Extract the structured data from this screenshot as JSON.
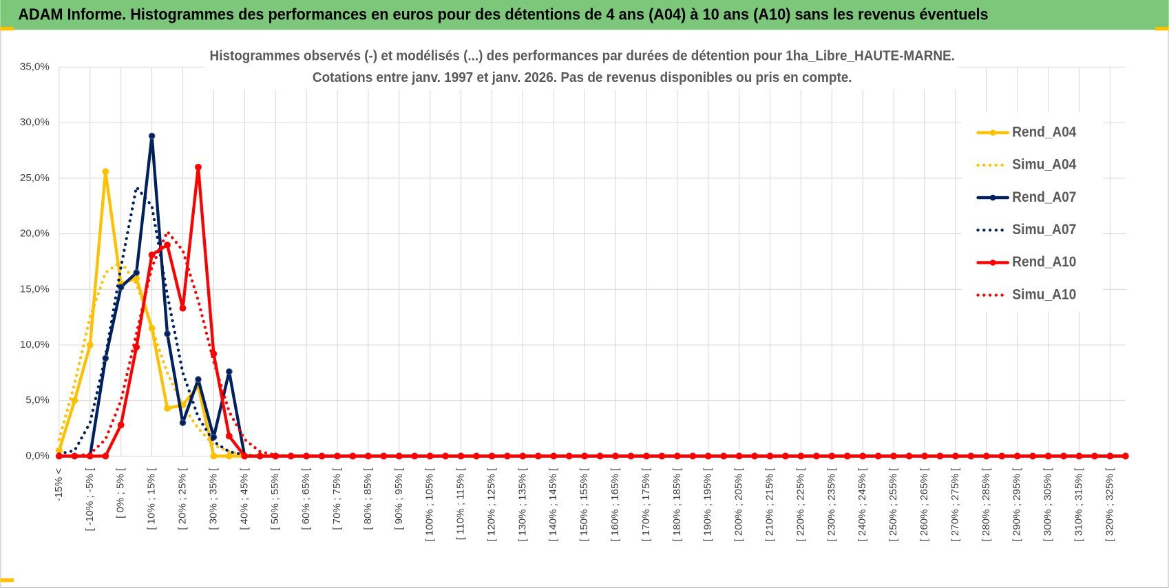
{
  "header": {
    "title": "ADAM Informe. Histogrammes des performances en euros pour des détentions de 4 ans (A04) à 10 ans (A10) sans les revenus éventuels"
  },
  "chart_data": {
    "type": "line",
    "title": "Histogrammes observés (-) et modélisés (...) des performances par durées de détention pour 1ha_Libre_HAUTE-MARNE.",
    "subtitle": "Cotations entre janv. 1997 et janv. 2026. Pas de revenus disponibles ou pris en compte.",
    "categories": [
      "-15% <",
      null,
      "[ -10% ; -5% [",
      null,
      "[ 0% ; 5% [",
      null,
      "[ 10% ; 15% [",
      null,
      "[ 20% ; 25% [",
      null,
      "[ 30% ; 35% [",
      null,
      "[ 40% ; 45% [",
      null,
      "[ 50% ; 55% [",
      null,
      "[ 60% ; 65% [",
      null,
      "[ 70% ; 75% [",
      null,
      "[ 80% ; 85% [",
      null,
      "[ 90% ; 95% [",
      null,
      "[ 100% ; 105% [",
      null,
      "[ 110% ; 115% [",
      null,
      "[ 120% ; 125% [",
      null,
      "[ 130% ; 135% [",
      null,
      "[ 140% ; 145% [",
      null,
      "[ 150% ; 155% [",
      null,
      "[ 160% ; 165% [",
      null,
      "[ 170% ; 175% [",
      null,
      "[ 180% ; 185% [",
      null,
      "[ 190% ; 195% [",
      null,
      "[ 200% ; 205% [",
      null,
      "[ 210% ; 215% [",
      null,
      "[ 220% ; 225% [",
      null,
      "[ 230% ; 235% [",
      null,
      "[ 240% ; 245% [",
      null,
      "[ 250% ; 255% [",
      null,
      "[ 260% ; 265% [",
      null,
      "[ 270% ; 275% [",
      null,
      "[ 280% ; 285% [",
      null,
      "[ 290% ; 295% [",
      null,
      "[ 300% ; 305% [",
      null,
      "[ 310% ; 315% [",
      null,
      "[ 320% ; 325% [",
      null
    ],
    "ylim": [
      0,
      35
    ],
    "yticks": [
      {
        "value": 0,
        "label": "0,0%"
      },
      {
        "value": 5,
        "label": "5,0%"
      },
      {
        "value": 10,
        "label": "10,0%"
      },
      {
        "value": 15,
        "label": "15,0%"
      },
      {
        "value": 20,
        "label": "20,0%"
      },
      {
        "value": 25,
        "label": "25,0%"
      },
      {
        "value": 30,
        "label": "30,0%"
      },
      {
        "value": 35,
        "label": "35,0%"
      }
    ],
    "grid": true,
    "legend": "right",
    "series": [
      {
        "name": "Rend_A04",
        "color": "#ffc000",
        "dash": "solid",
        "markers": true,
        "values": [
          0.5,
          5,
          10,
          25.6,
          15.5,
          16,
          11.5,
          4.3,
          4.6,
          6.3,
          0,
          0,
          0,
          0,
          0,
          0,
          0,
          0,
          0,
          0,
          0,
          0,
          0,
          0,
          0,
          0,
          0,
          0,
          0,
          0,
          0,
          0,
          0,
          0,
          0,
          0,
          0,
          0,
          0,
          0,
          0,
          0,
          0,
          0,
          0,
          0,
          0,
          0,
          0,
          0,
          0,
          0,
          0,
          0,
          0,
          0,
          0,
          0,
          0,
          0,
          0,
          0,
          0,
          0,
          0,
          0,
          0,
          0,
          0,
          0
        ]
      },
      {
        "name": "Simu_A04",
        "color": "#ffc000",
        "dash": "dotted",
        "markers": false,
        "values": [
          1.5,
          6.5,
          12.5,
          16.5,
          17.5,
          15.5,
          11.5,
          7.5,
          4.5,
          2.5,
          1,
          0.4,
          0.1,
          0,
          0,
          0,
          0,
          0,
          0,
          0,
          0,
          0,
          0,
          0,
          0,
          0,
          0,
          0,
          0,
          0,
          0,
          0,
          0,
          0,
          0,
          0,
          0,
          0,
          0,
          0,
          0,
          0,
          0,
          0,
          0,
          0,
          0,
          0,
          0,
          0,
          0,
          0,
          0,
          0,
          0,
          0,
          0,
          0,
          0,
          0,
          0,
          0,
          0,
          0,
          0,
          0,
          0,
          0,
          0,
          0
        ]
      },
      {
        "name": "Rend_A07",
        "color": "#002060",
        "dash": "solid",
        "markers": true,
        "values": [
          0,
          0,
          0,
          8.8,
          15.2,
          16.5,
          28.8,
          11,
          3,
          6.9,
          1.7,
          7.6,
          0,
          0,
          0,
          0,
          0,
          0,
          0,
          0,
          0,
          0,
          0,
          0,
          0,
          0,
          0,
          0,
          0,
          0,
          0,
          0,
          0,
          0,
          0,
          0,
          0,
          0,
          0,
          0,
          0,
          0,
          0,
          0,
          0,
          0,
          0,
          0,
          0,
          0,
          0,
          0,
          0,
          0,
          0,
          0,
          0,
          0,
          0,
          0,
          0,
          0,
          0,
          0,
          0,
          0,
          0,
          0,
          0,
          0
        ]
      },
      {
        "name": "Simu_A07",
        "color": "#002060",
        "dash": "dotted",
        "markers": false,
        "values": [
          0.2,
          0.5,
          3,
          9,
          17,
          24.2,
          22.5,
          14.5,
          7.5,
          3.5,
          1.3,
          0.4,
          0.1,
          0,
          0,
          0,
          0,
          0,
          0,
          0,
          0,
          0,
          0,
          0,
          0,
          0,
          0,
          0,
          0,
          0,
          0,
          0,
          0,
          0,
          0,
          0,
          0,
          0,
          0,
          0,
          0,
          0,
          0,
          0,
          0,
          0,
          0,
          0,
          0,
          0,
          0,
          0,
          0,
          0,
          0,
          0,
          0,
          0,
          0,
          0,
          0,
          0,
          0,
          0,
          0,
          0,
          0,
          0,
          0,
          0
        ]
      },
      {
        "name": "Rend_A10",
        "color": "#ff0000",
        "dash": "solid",
        "markers": true,
        "values": [
          0,
          0,
          0,
          0,
          2.8,
          9.8,
          18.1,
          19,
          13.3,
          26,
          9.2,
          1.8,
          0,
          0,
          0,
          0,
          0,
          0,
          0,
          0,
          0,
          0,
          0,
          0,
          0,
          0,
          0,
          0,
          0,
          0,
          0,
          0,
          0,
          0,
          0,
          0,
          0,
          0,
          0,
          0,
          0,
          0,
          0,
          0,
          0,
          0,
          0,
          0,
          0,
          0,
          0,
          0,
          0,
          0,
          0,
          0,
          0,
          0,
          0,
          0,
          0,
          0,
          0,
          0,
          0,
          0,
          0,
          0,
          0,
          0
        ]
      },
      {
        "name": "Simu_A10",
        "color": "#ff0000",
        "dash": "dotted",
        "markers": false,
        "values": [
          0,
          0,
          0.2,
          1.5,
          5,
          11,
          17,
          20.2,
          18.5,
          14,
          8.5,
          4,
          1.5,
          0.4,
          0.1,
          0,
          0,
          0,
          0,
          0,
          0,
          0,
          0,
          0,
          0,
          0,
          0,
          0,
          0,
          0,
          0,
          0,
          0,
          0,
          0,
          0,
          0,
          0,
          0,
          0,
          0,
          0,
          0,
          0,
          0,
          0,
          0,
          0,
          0,
          0,
          0,
          0,
          0,
          0,
          0,
          0,
          0,
          0,
          0,
          0,
          0,
          0,
          0,
          0,
          0,
          0,
          0,
          0,
          0,
          0
        ]
      }
    ]
  }
}
